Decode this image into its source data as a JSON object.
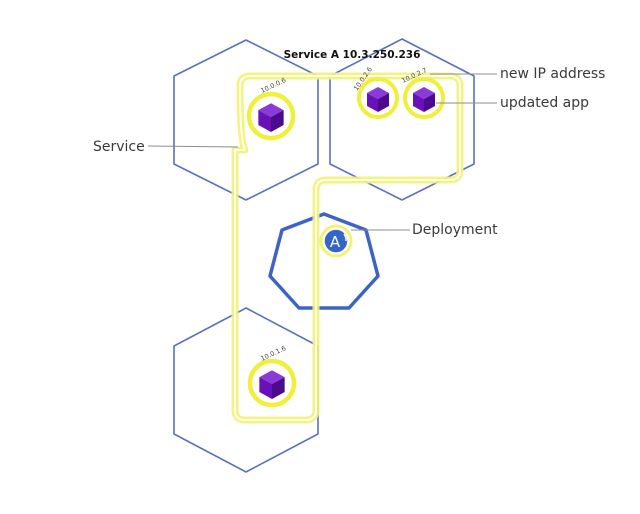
{
  "service_title": "Service A 10.3.250.236",
  "labels": {
    "service": "Service",
    "deployment": "Deployment",
    "new_ip": "new IP address",
    "updated_app": "updated app"
  },
  "pods": [
    {
      "ip": "10.0.0.6"
    },
    {
      "ip": "10.0.2.6"
    },
    {
      "ip": "10.0.2.7"
    },
    {
      "ip": "10.0.1.6"
    }
  ],
  "deployment_badge": "A",
  "colors": {
    "node_stroke": "#5a6fbd",
    "deployment_stroke": "#3d63c9",
    "service_outline": "#f2f276",
    "pod_ring": "#f0f03a",
    "cube_front": "#6a10b8",
    "cube_top": "#8a3ad8",
    "cube_side": "#4c0a8c",
    "leader_line": "#8c8c8c",
    "badge_fill": "#3466c9"
  }
}
